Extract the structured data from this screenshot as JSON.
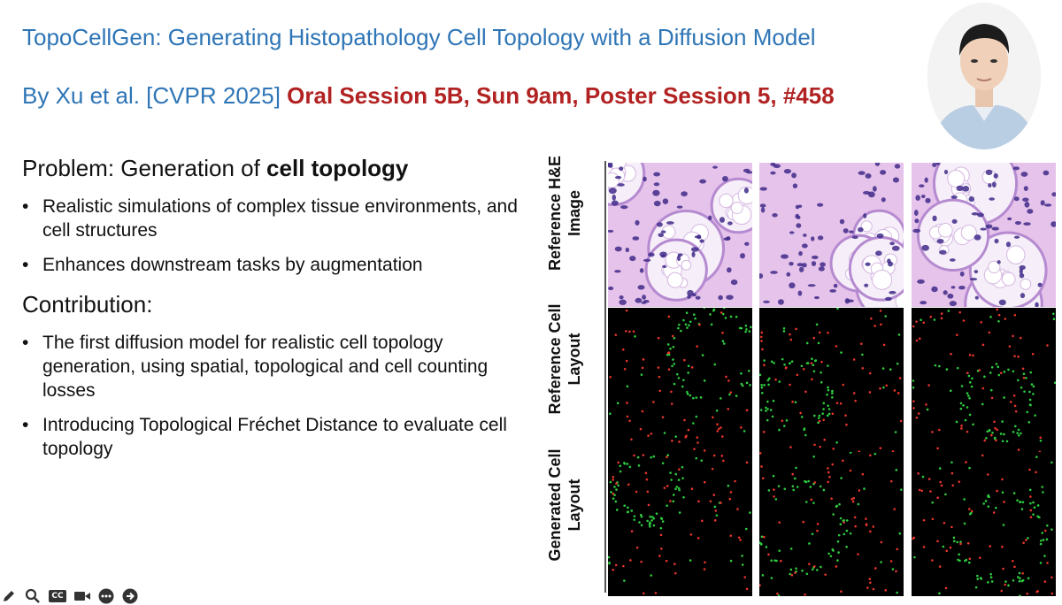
{
  "slide": {
    "title": "TopoCellGen: Generating Histopathology Cell Topology with a Diffusion Model",
    "authors": "By Xu et al. [CVPR 2025] ",
    "session": "Oral Session 5B, Sun 9am, Poster Session 5, #458",
    "problem_prefix": "Problem: Generation of ",
    "problem_bold": "cell topology",
    "problem_bullets": [
      "Realistic simulations of complex tissue environments, and cell structures",
      "Enhances downstream tasks by augmentation"
    ],
    "contribution_heading": "Contribution:",
    "contribution_bullets": [
      "The first diffusion model for realistic cell topology generation, using spatial, topological and cell counting losses",
      "Introducing Topological Fréchet Distance to evaluate cell topology"
    ]
  },
  "figure": {
    "row_labels": {
      "reference_he": [
        "Reference H&E",
        "Image"
      ],
      "reference_layout": [
        "Reference Cell",
        "Layout"
      ],
      "generated_layout": [
        "Generated Cell",
        "Layout"
      ]
    }
  },
  "colors": {
    "title_blue": "#2e75b6",
    "session_red": "#b22222",
    "he_bg": "#e6c3ea",
    "nucleus": "#3f2a8a",
    "cell_green": "#2ecc40",
    "cell_red": "#e8352b"
  },
  "toolbar": {
    "icons": [
      "pen-icon",
      "zoom-icon",
      "closed-captions-icon",
      "camera-icon",
      "more-icon",
      "next-icon"
    ],
    "cc_label": "CC"
  }
}
